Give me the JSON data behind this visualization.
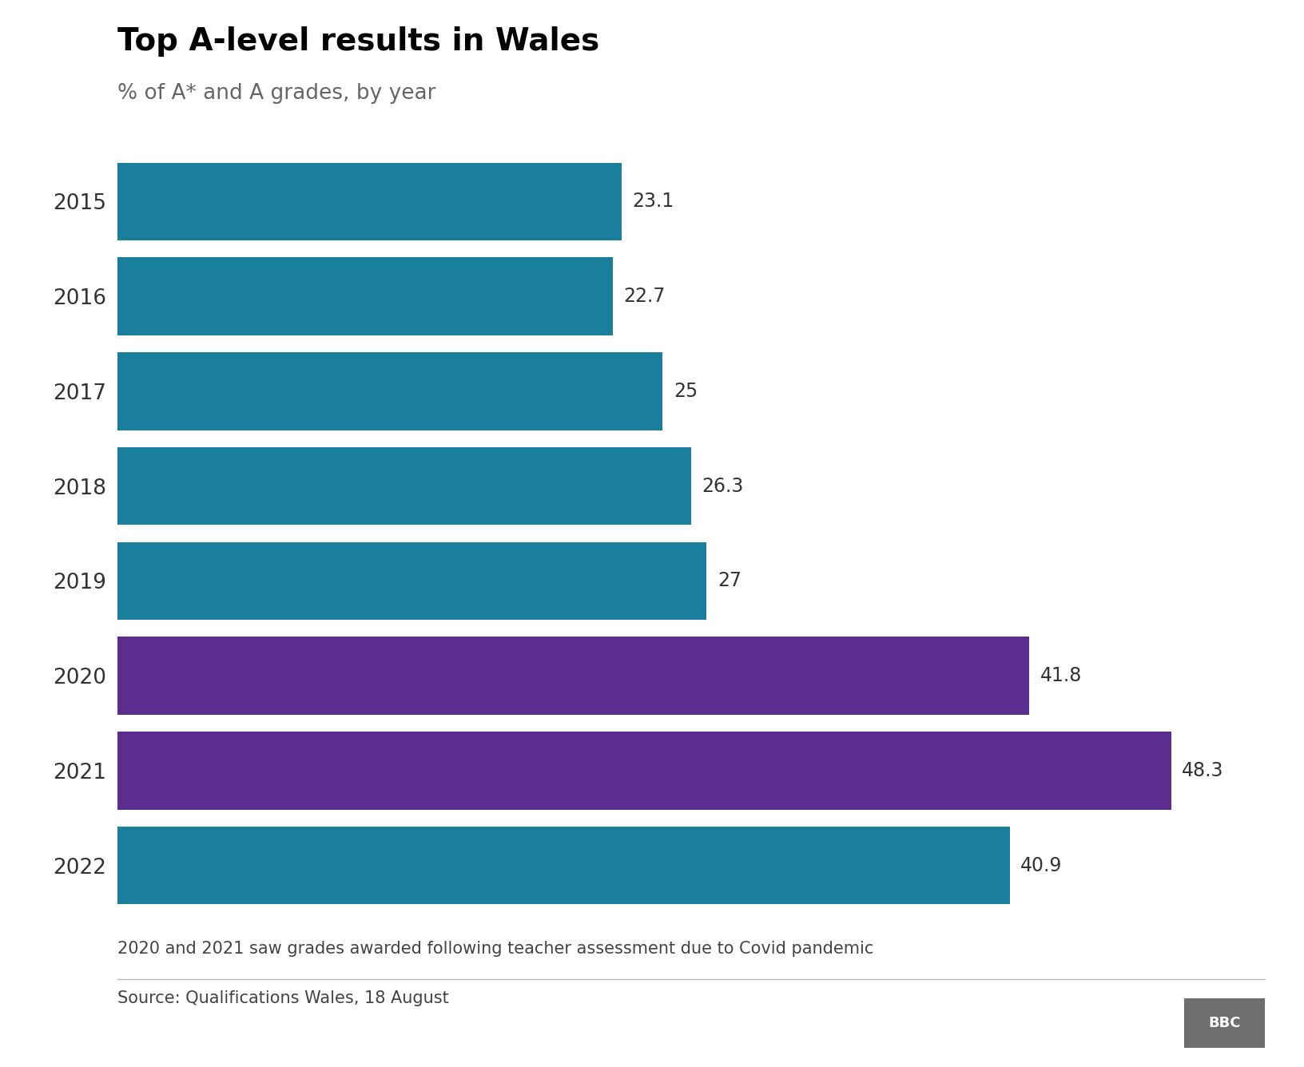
{
  "title": "Top A-level results in Wales",
  "subtitle": "% of A* and A grades, by year",
  "years": [
    "2015",
    "2016",
    "2017",
    "2018",
    "2019",
    "2020",
    "2021",
    "2022"
  ],
  "values": [
    23.1,
    22.7,
    25.0,
    26.3,
    27.0,
    41.8,
    48.3,
    40.9
  ],
  "bar_colors": [
    "#1a7f9c",
    "#1a7f9c",
    "#1a7f9c",
    "#1a7f9c",
    "#1a7f9c",
    "#5b2d8e",
    "#5b2d8e",
    "#1a7f9c"
  ],
  "note": "2020 and 2021 saw grades awarded following teacher assessment due to Covid pandemic",
  "source": "Source: Qualifications Wales, 18 August",
  "xlim": [
    0,
    52
  ],
  "background_color": "#ffffff",
  "title_fontsize": 28,
  "subtitle_fontsize": 19,
  "label_fontsize": 17,
  "note_fontsize": 15,
  "source_fontsize": 15,
  "ytick_fontsize": 19
}
